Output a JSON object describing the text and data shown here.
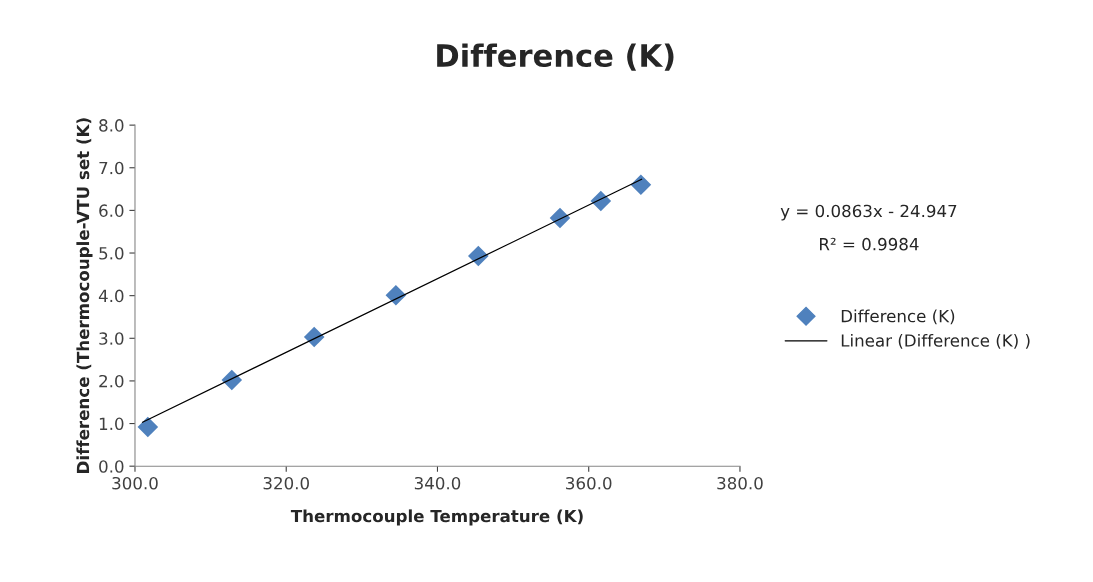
{
  "chart_data": {
    "type": "scatter",
    "title": "Difference (K)",
    "xlabel": "Thermocouple Temperature (K)",
    "ylabel": "Difference (Thermocouple-VTU set (K)",
    "series": [
      {
        "name": "Difference (K)",
        "type": "scatter",
        "color": "#4f81bd",
        "marker": "diamond",
        "x": [
          301.7,
          312.8,
          323.7,
          334.5,
          345.4,
          356.2,
          361.6,
          366.9
        ],
        "values": [
          0.92,
          2.02,
          3.03,
          4.01,
          4.93,
          5.82,
          6.22,
          6.6
        ]
      },
      {
        "name": "Linear (Difference (K) )",
        "type": "line",
        "color": "#000000",
        "marker": "none",
        "line_style": "solid",
        "x": [
          301.0,
          367.0
        ],
        "values": [
          1.03,
          6.73
        ]
      }
    ],
    "xlim": [
      300,
      380
    ],
    "xticks": [
      {
        "value": 300,
        "label": "300.0"
      },
      {
        "value": 320,
        "label": "320.0"
      },
      {
        "value": 340,
        "label": "340.0"
      },
      {
        "value": 360,
        "label": "360.0"
      },
      {
        "value": 380,
        "label": "380.0"
      }
    ],
    "ylim": [
      0,
      8
    ],
    "yticks": [
      {
        "value": 0,
        "label": "0.0"
      },
      {
        "value": 1,
        "label": "1.0"
      },
      {
        "value": 2,
        "label": "2.0"
      },
      {
        "value": 3,
        "label": "3.0"
      },
      {
        "value": 4,
        "label": "4.0"
      },
      {
        "value": 5,
        "label": "5.0"
      },
      {
        "value": 6,
        "label": "6.0"
      },
      {
        "value": 7,
        "label": "7.0"
      },
      {
        "value": 8,
        "label": "8.0"
      }
    ],
    "grid": false,
    "legend": "right",
    "annotations": [
      "y = 0.0863x - 24.947",
      "R² = 0.9984"
    ]
  }
}
